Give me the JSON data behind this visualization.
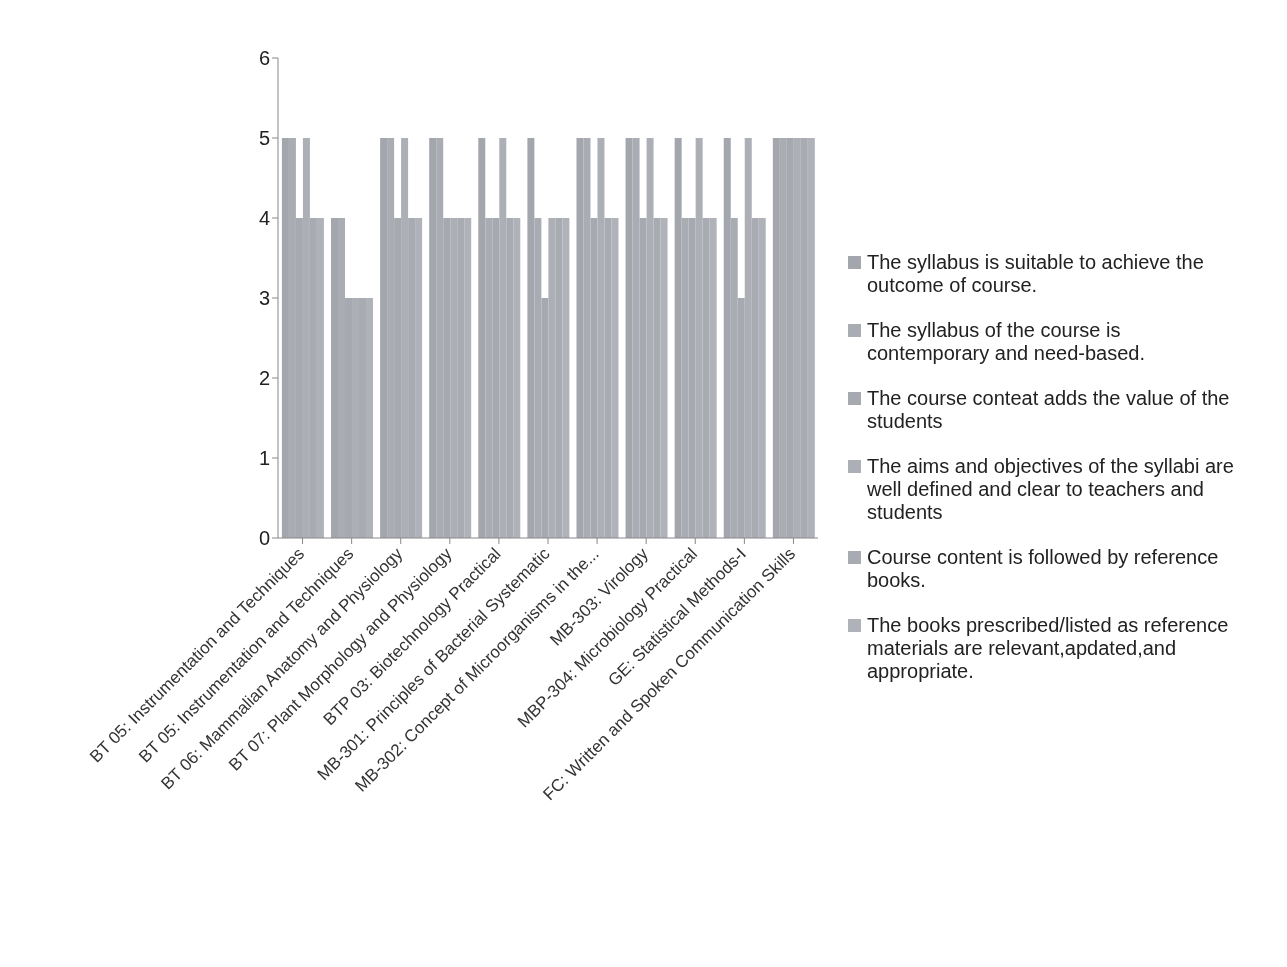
{
  "chart_data": {
    "type": "bar",
    "categories": [
      "BT 05: Instrumentation and Techniques",
      "BT 05: Instrumentation and Techniques",
      "BT 06: Mammalian Anatomy and Physiology",
      "BT 07: Plant Morphology and Physiology",
      "BTP 03: Biotechnology Practical",
      "MB-301: Principles of Bacterial Systematic",
      "MB-302: Concept of Microorganisms in the...",
      "MB-303: Virology",
      "MBP-304: Microbiology Practical",
      "GE: Statistical Methods-I",
      "FC: Written and Spoken Communication Skills"
    ],
    "series": [
      {
        "name": "The syllabus is suitable to achieve the outcome of course.",
        "color": "#a4a6ae",
        "values": [
          5,
          4,
          5,
          5,
          5,
          5,
          5,
          5,
          5,
          5,
          5
        ]
      },
      {
        "name": "The syllabus of the course is contemporary and need-based.",
        "color": "#aaacb4",
        "values": [
          5,
          4,
          5,
          5,
          4,
          4,
          5,
          5,
          4,
          4,
          5
        ]
      },
      {
        "name": "The course conteat adds the value of the students",
        "color": "#a7a9b1",
        "values": [
          4,
          3,
          4,
          4,
          4,
          3,
          4,
          4,
          4,
          3,
          5
        ]
      },
      {
        "name": "The aims and objectives of the syllabi are well defined and clear to teachers and students",
        "color": "#adafb7",
        "values": [
          5,
          3,
          5,
          4,
          5,
          4,
          5,
          5,
          5,
          5,
          5
        ]
      },
      {
        "name": "Course content is followed by reference books.",
        "color": "#a9abb3",
        "values": [
          4,
          3,
          4,
          4,
          4,
          4,
          4,
          4,
          4,
          4,
          5
        ]
      },
      {
        "name": "The books prescribed/listed as reference materials are relevant,apdated,and appropriate.",
        "color": "#b0b2ba",
        "values": [
          4,
          3,
          4,
          4,
          4,
          4,
          4,
          4,
          4,
          4,
          5
        ]
      }
    ],
    "ylim": [
      0,
      6
    ],
    "yticks": [
      0,
      1,
      2,
      3,
      4,
      5,
      6
    ],
    "grid": false,
    "legend": "right"
  }
}
